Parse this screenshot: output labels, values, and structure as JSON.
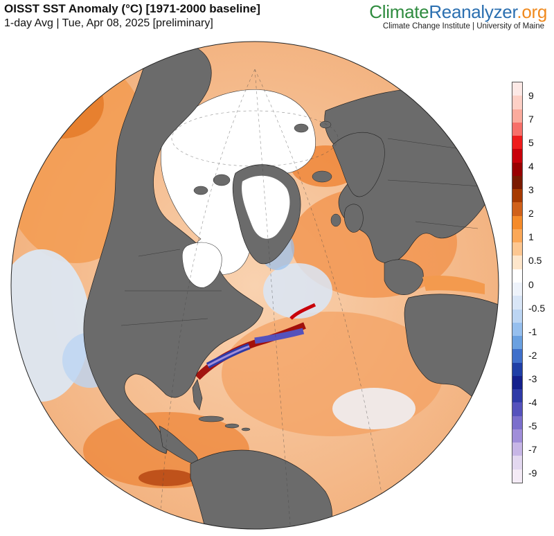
{
  "header": {
    "title": "OISST SST Anomaly (°C) [1971-2000 baseline]",
    "subtitle": "1-day Avg | Tue, Apr 08, 2025 [preliminary]"
  },
  "brand": {
    "part1": "Climate",
    "part2": "Reanalyzer",
    "part3": ".org",
    "tagline": "Climate Change Institute | University of Maine",
    "colors": {
      "part1": "#2e8b3e",
      "part2": "#2b6fb0",
      "part3": "#f08a1e"
    }
  },
  "map": {
    "projection": "orthographic",
    "center": "North Atlantic",
    "colors": {
      "land": "#6b6b6b",
      "ice": "#ffffff",
      "ocean_base": "#f7e4d4"
    }
  },
  "legend": {
    "bins": [
      "#fde9e6",
      "#fdd0c6",
      "#fbab9d",
      "#f7706a",
      "#ee1c1c",
      "#c8000a",
      "#990000",
      "#7a1a00",
      "#a63a00",
      "#d0611a",
      "#f58b2a",
      "#fba858",
      "#fdc791",
      "#fee6cb",
      "#ffffff",
      "#eef3fb",
      "#d9e6f7",
      "#bcd5f3",
      "#96bfee",
      "#6aa0e0",
      "#3f6fca",
      "#1f3fa6",
      "#14208c",
      "#2e3aa7",
      "#5552bc",
      "#7b6fcc",
      "#a08ed9",
      "#c7b6e6",
      "#e3d8f0",
      "#f4ebf6"
    ],
    "labels": [
      "9",
      "7",
      "5",
      "4",
      "3",
      "2",
      "1",
      "0.5",
      "0",
      "-0.5",
      "-1",
      "-2",
      "-3",
      "-4",
      "-5",
      "-7",
      "-9"
    ]
  }
}
